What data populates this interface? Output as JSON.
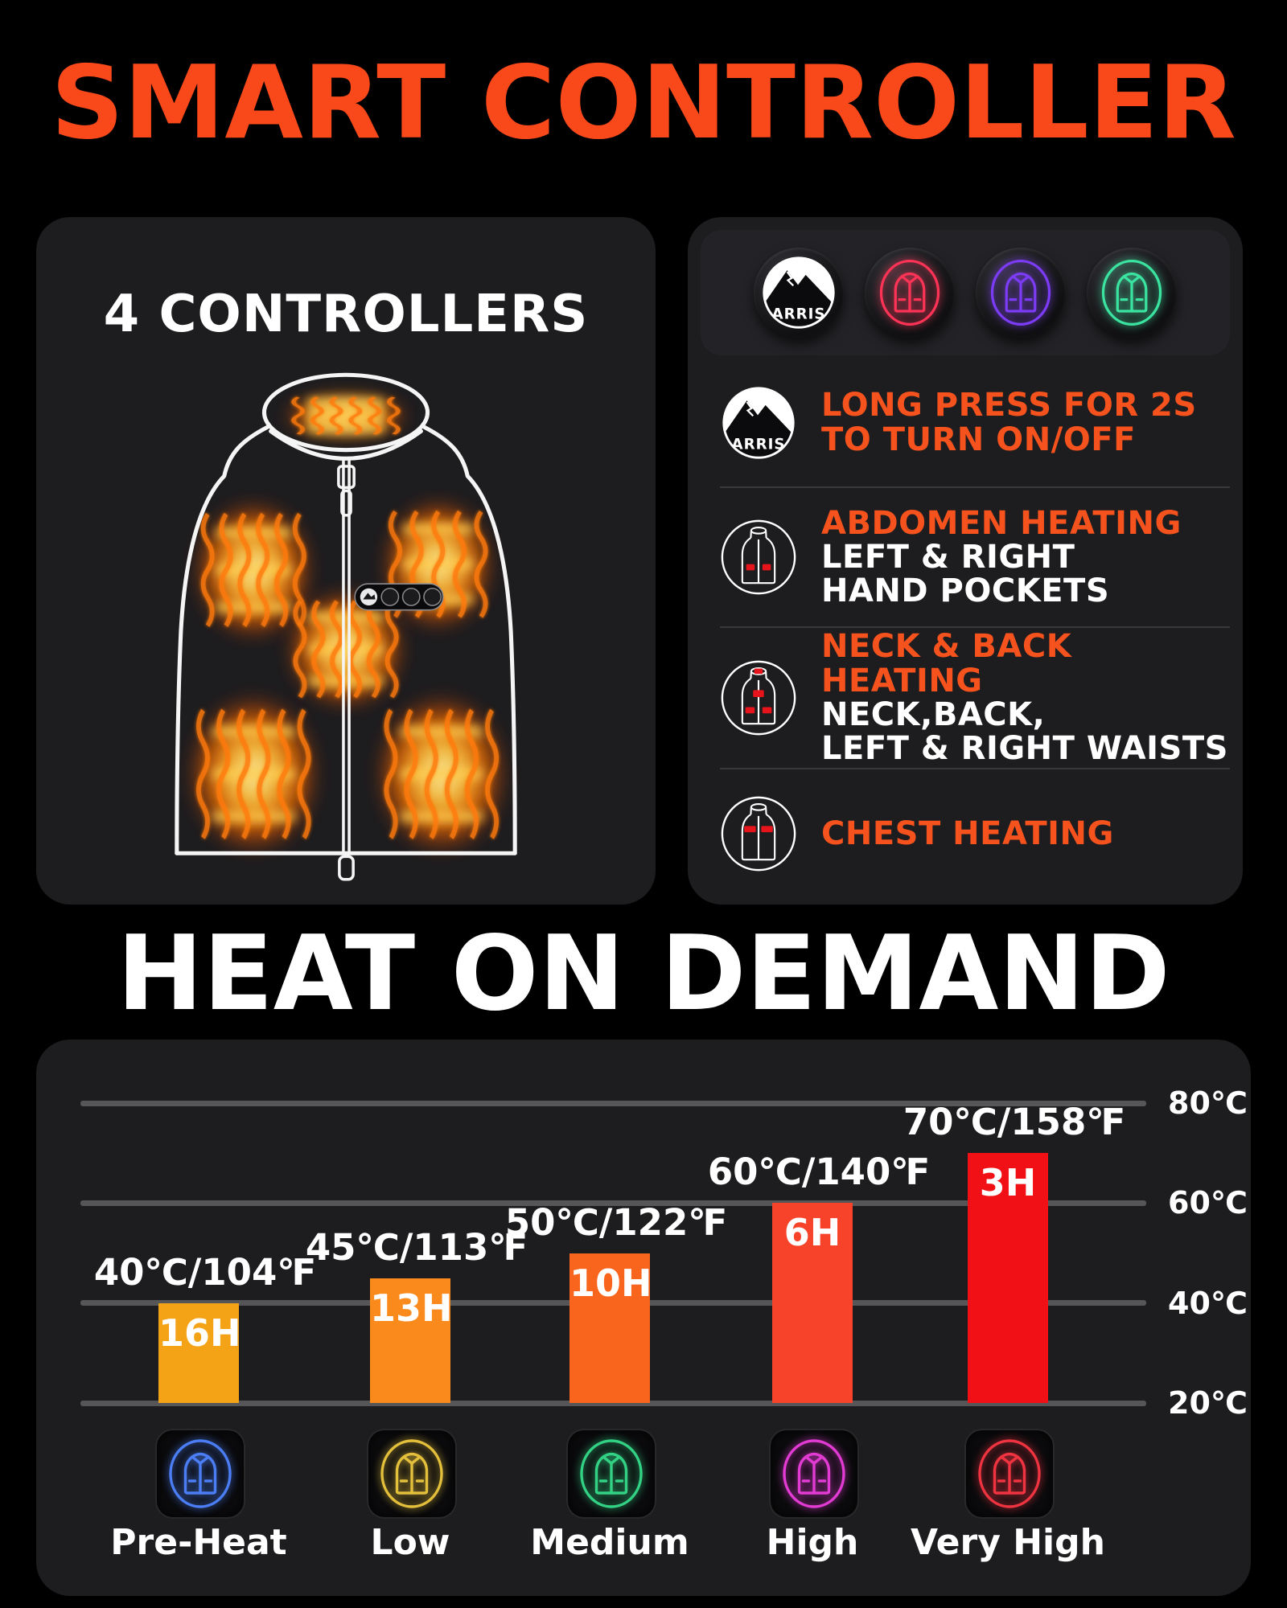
{
  "title": "SMART CONTROLLER",
  "brand": "ARRIS",
  "section_title": "HEAT ON DEMAND",
  "left_panel": {
    "heading": "4 CONTROLLERS",
    "heat_zones": [
      "collar",
      "left-chest",
      "right-chest",
      "center-abdomen",
      "bottom-left",
      "bottom-right"
    ]
  },
  "right_panel": {
    "buttons": [
      {
        "name": "arris-power-button",
        "label": "ARRIS",
        "color": "#FFFFFF"
      },
      {
        "name": "abdomen-zone-button",
        "color": "#FF3356"
      },
      {
        "name": "neck-back-zone-button",
        "color": "#7C3BF5"
      },
      {
        "name": "chest-zone-button",
        "color": "#3BE3A0"
      }
    ],
    "rows": [
      {
        "icon": "arris-logo",
        "heading_lines": [
          "LONG PRESS FOR 2S",
          "TO TURN ON/OFF"
        ],
        "body_lines": []
      },
      {
        "icon": "vest-abdomen",
        "heading_lines": [
          "ABDOMEN HEATING"
        ],
        "body_lines": [
          "LEFT & RIGHT",
          "HAND POCKETS"
        ]
      },
      {
        "icon": "vest-neck-back",
        "heading_lines": [
          "NECK & BACK HEATING"
        ],
        "body_lines": [
          "NECK,BACK,",
          "LEFT & RIGHT WAISTS"
        ]
      },
      {
        "icon": "vest-chest",
        "heading_lines": [
          "CHEST HEATING"
        ],
        "body_lines": []
      }
    ]
  },
  "chart_data": {
    "type": "bar",
    "title": "HEAT ON DEMAND",
    "categories": [
      "Pre-Heat",
      "Low",
      "Medium",
      "High",
      "Very High"
    ],
    "values_celsius": [
      40,
      45,
      50,
      60,
      70
    ],
    "temp_labels": [
      "40℃/104℉",
      "45℃/113℉",
      "50℃/122℉",
      "60℃/140℉",
      "70℃/158℉"
    ],
    "durations": [
      "16H",
      "13H",
      "10H",
      "6H",
      "3H"
    ],
    "bar_colors": [
      "#F3A315",
      "#FB8A1D",
      "#FA651D",
      "#F8432B",
      "#F11015"
    ],
    "icon_colors": [
      "#4B7EF5",
      "#E3BF3C",
      "#32D183",
      "#E23BD3",
      "#EF3340"
    ],
    "ylim": [
      20,
      80
    ],
    "yticks": [
      {
        "label": "80℃",
        "value": 80
      },
      {
        "label": "60℃",
        "value": 60
      },
      {
        "label": "40℃",
        "value": 40
      },
      {
        "label": "20℃",
        "value": 20
      }
    ],
    "grid": true,
    "legend": "none"
  },
  "colors": {
    "title_orange": "#F9491B",
    "accent_orange": "#F5521D",
    "page_bg": "#000000",
    "panel_bg": "#1D1D1F",
    "gridline": "#565659",
    "divider": "#38383B",
    "white": "#FFFFFF",
    "red_pad": "#E8141B"
  }
}
